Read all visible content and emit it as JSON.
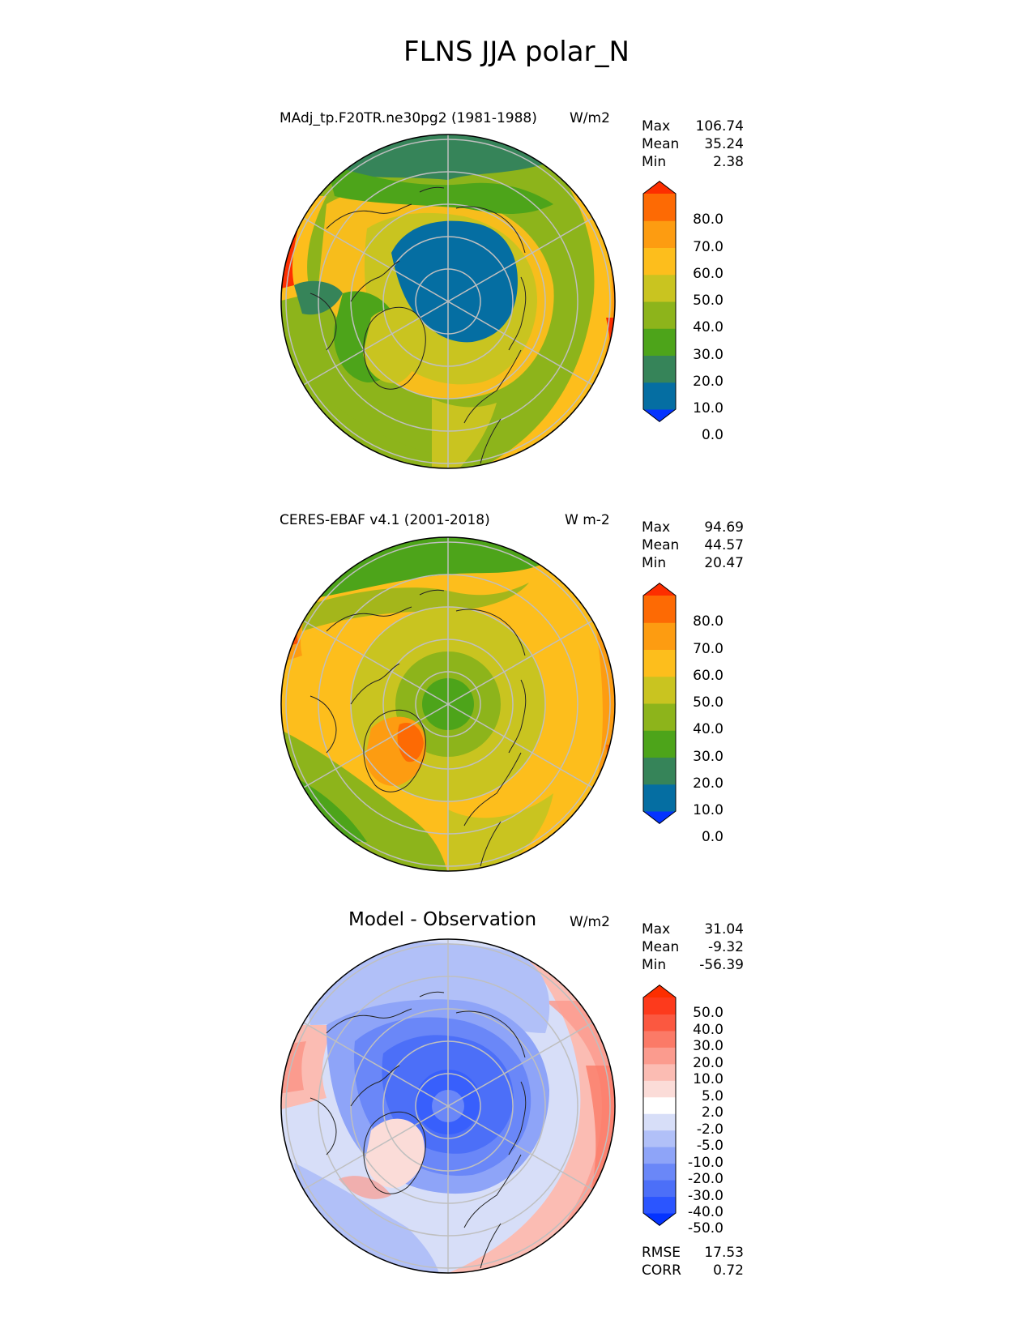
{
  "title": "FLNS JJA polar_N",
  "panels": [
    {
      "left_title": "MAdj_tp.F20TR.ne30pg2 (1981-1988)",
      "units": "W/m2",
      "stats": [
        {
          "label": "Max",
          "value": "106.74"
        },
        {
          "label": "Mean",
          "value": "35.24"
        },
        {
          "label": "Min",
          "value": "2.38"
        }
      ],
      "colorbar": {
        "ticks": [
          "80.0",
          "70.0",
          "60.0",
          "50.0",
          "40.0",
          "30.0",
          "20.0",
          "10.0",
          "0.0"
        ],
        "colors": [
          "#0433ff",
          "#056ea2",
          "#368459",
          "#4da41a",
          "#8db41b",
          "#c9c420",
          "#fdbe1c",
          "#fd9c11",
          "#fd6a04",
          "#fd2e00"
        ],
        "top_color": "#fd2e00",
        "bottom_color": "#0433ff"
      }
    },
    {
      "left_title": "CERES-EBAF v4.1 (2001-2018)",
      "units": "W m-2",
      "stats": [
        {
          "label": "Max",
          "value": "94.69"
        },
        {
          "label": "Mean",
          "value": "44.57"
        },
        {
          "label": "Min",
          "value": "20.47"
        }
      ],
      "colorbar": {
        "ticks": [
          "80.0",
          "70.0",
          "60.0",
          "50.0",
          "40.0",
          "30.0",
          "20.0",
          "10.0",
          "0.0"
        ],
        "colors": [
          "#0433ff",
          "#056ea2",
          "#368459",
          "#4da41a",
          "#8db41b",
          "#c9c420",
          "#fdbe1c",
          "#fd9c11",
          "#fd6a04",
          "#fd2e00"
        ],
        "top_color": "#fd2e00",
        "bottom_color": "#0433ff"
      }
    },
    {
      "center_title": "Model - Observation",
      "units": "W/m2",
      "stats": [
        {
          "label": "Max",
          "value": "31.04"
        },
        {
          "label": "Mean",
          "value": "-9.32"
        },
        {
          "label": "Min",
          "value": "-56.39"
        }
      ],
      "extra_stats": [
        {
          "label": "RMSE",
          "value": "17.53"
        },
        {
          "label": "CORR",
          "value": "0.72"
        }
      ],
      "colorbar": {
        "ticks": [
          "50.0",
          "40.0",
          "30.0",
          "20.0",
          "10.0",
          "5.0",
          "2.0",
          "-2.0",
          "-5.0",
          "-10.0",
          "-20.0",
          "-30.0",
          "-40.0",
          "-50.0"
        ],
        "colors": [
          "#0433ff",
          "#2b55ff",
          "#4c6ff8",
          "#6a87f8",
          "#8ea4f8",
          "#b1c0f8",
          "#d7def8",
          "#ffffff",
          "#fbdcd8",
          "#fbbcb3",
          "#fb9b8e",
          "#fb7a67",
          "#fb5840",
          "#fd3a1c",
          "#fd2e00"
        ],
        "top_color": "#fd2e00",
        "bottom_color": "#0433ff"
      }
    }
  ]
}
